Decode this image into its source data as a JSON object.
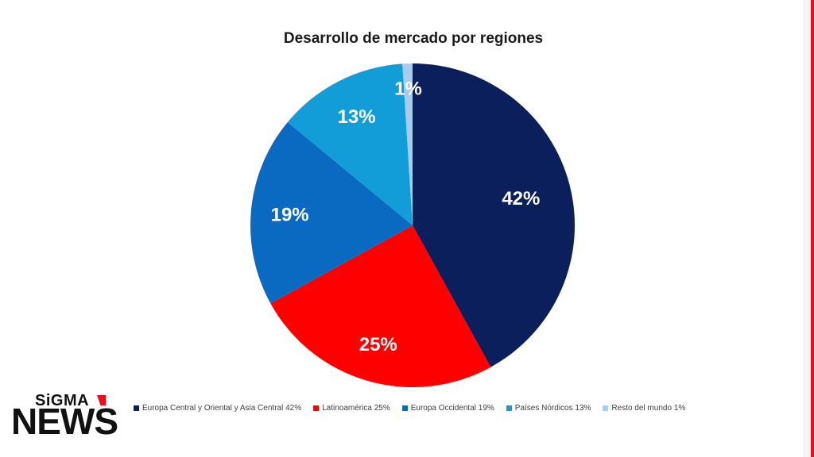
{
  "chart_data": {
    "type": "pie",
    "title": "Desarrollo de mercado por regiones",
    "categories": [
      "Europa Central y Oriental y Asia Central",
      "Latinoamérica",
      "Europa Occidental",
      "Países Nórdicos",
      "Resto del mundo"
    ],
    "values": [
      42,
      25,
      19,
      13,
      1
    ],
    "unit": "%",
    "slice_labels": [
      "42%",
      "25%",
      "19%",
      "13%",
      "1%"
    ],
    "colors": [
      "#0a1f5c",
      "#ff0000",
      "#0a6ac2",
      "#129dd8",
      "#a8ccf0"
    ],
    "legend": [
      "Europa Central y Oriental y Asia Central  42%",
      "Latinoamérica 25%",
      "Europa Occidental 19%",
      "Países Nórdicos 13%",
      "Resto del mundo 1%"
    ],
    "legend_position": "bottom"
  },
  "branding": {
    "logo_top": "SiGMA",
    "logo_bottom": "NEWS",
    "accent_color": "#e8101c"
  }
}
